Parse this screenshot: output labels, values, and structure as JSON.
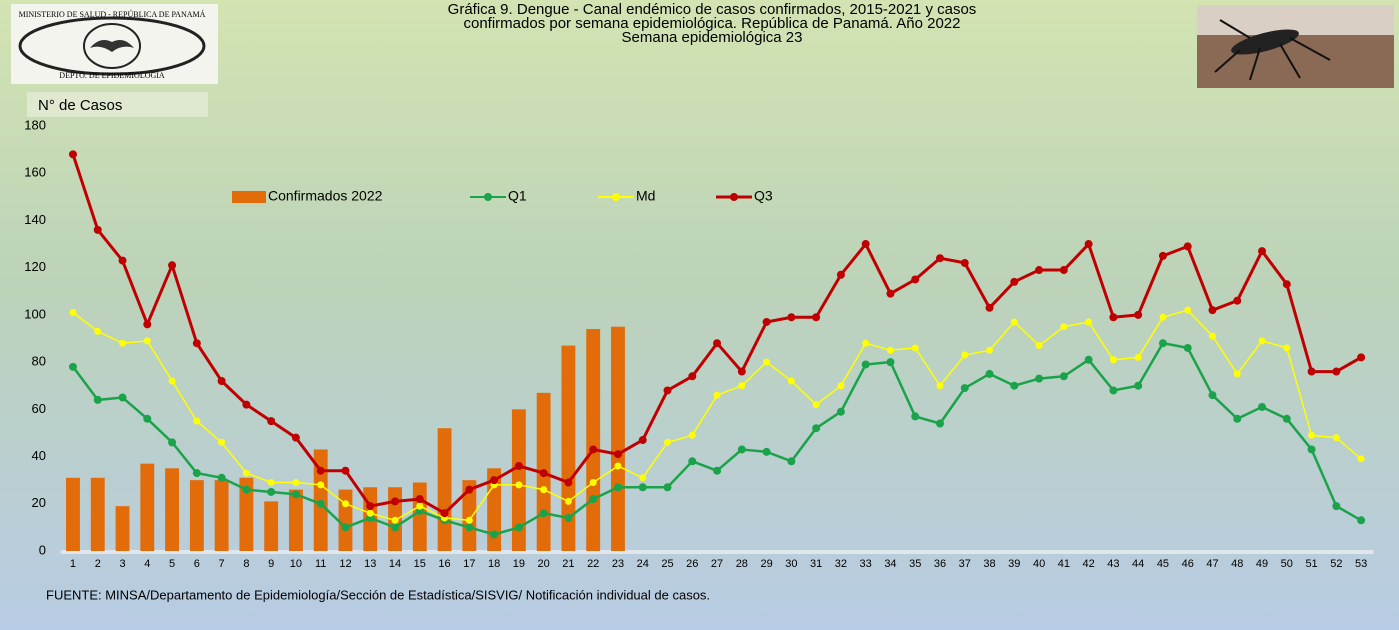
{
  "chart_data": {
    "type": "combo",
    "title": [
      "Gráfica 9. Dengue - Canal endémico de casos confirmados, 2015-2021 y casos",
      "confirmados por semana epidemiológica. República de Panamá. Año 2022",
      "Semana epidemiológica 23"
    ],
    "logo": {
      "top": "MINISTERIO DE SALUD - REPÚBLICA DE PANAMÁ",
      "bottom": "DEPTO. DE EPIDEMIOLOGÍA"
    },
    "y_label": "N° de Casos",
    "source": "FUENTE: MINSA/Departamento de Epidemiología/Sección de Estadística/SISVIG/ Notificación individual de casos.",
    "categories": [
      "1",
      "2",
      "3",
      "4",
      "5",
      "6",
      "7",
      "8",
      "9",
      "10",
      "11",
      "12",
      "13",
      "14",
      "15",
      "16",
      "17",
      "18",
      "19",
      "20",
      "21",
      "22",
      "23",
      "24",
      "25",
      "26",
      "27",
      "28",
      "29",
      "30",
      "31",
      "32",
      "33",
      "34",
      "35",
      "36",
      "37",
      "38",
      "39",
      "40",
      "41",
      "42",
      "43",
      "44",
      "45",
      "46",
      "47",
      "48",
      "49",
      "50",
      "51",
      "52",
      "53"
    ],
    "ylim": [
      0,
      180
    ],
    "yticks": [
      0,
      20,
      40,
      60,
      80,
      100,
      120,
      140,
      160,
      180
    ],
    "grid": false,
    "legend": "top-left",
    "series": [
      {
        "name": "Confirmados 2022",
        "type": "bar",
        "color": "#e36c0a",
        "values": [
          31,
          31,
          19,
          37,
          35,
          30,
          30,
          31,
          21,
          26,
          43,
          26,
          27,
          27,
          29,
          52,
          30,
          35,
          60,
          67,
          87,
          94,
          95,
          null,
          null,
          null,
          null,
          null,
          null,
          null,
          null,
          null,
          null,
          null,
          null,
          null,
          null,
          null,
          null,
          null,
          null,
          null,
          null,
          null,
          null,
          null,
          null,
          null,
          null,
          null,
          null,
          null,
          null
        ]
      },
      {
        "name": "Q1",
        "type": "line",
        "color": "#1aa34a",
        "values": [
          78,
          64,
          65,
          56,
          46,
          33,
          31,
          26,
          25,
          24,
          20,
          10,
          14,
          10,
          17,
          13,
          10,
          7,
          10,
          16,
          14,
          22,
          27,
          27,
          27,
          38,
          34,
          43,
          42,
          38,
          52,
          59,
          79,
          80,
          57,
          54,
          69,
          75,
          70,
          73,
          74,
          81,
          68,
          70,
          88,
          86,
          66,
          56,
          61,
          56,
          43,
          19,
          13
        ]
      },
      {
        "name": "Md",
        "type": "line",
        "color": "#ffff00",
        "values": [
          101,
          93,
          88,
          89,
          72,
          55,
          46,
          33,
          29,
          29,
          28,
          20,
          16,
          13,
          19,
          14,
          13,
          28,
          28,
          26,
          21,
          29,
          36,
          31,
          46,
          49,
          66,
          70,
          80,
          72,
          62,
          70,
          88,
          85,
          86,
          70,
          83,
          85,
          97,
          87,
          95,
          97,
          81,
          82,
          99,
          102,
          91,
          75,
          89,
          86,
          49,
          48,
          39
        ]
      },
      {
        "name": "Q3",
        "type": "line",
        "color": "#c00000",
        "values": [
          168,
          136,
          123,
          96,
          121,
          88,
          72,
          62,
          55,
          48,
          34,
          34,
          19,
          21,
          22,
          16,
          26,
          30,
          36,
          33,
          29,
          43,
          41,
          47,
          68,
          74,
          88,
          76,
          97,
          99,
          99,
          117,
          130,
          109,
          115,
          124,
          122,
          103,
          114,
          119,
          119,
          130,
          99,
          100,
          125,
          129,
          102,
          106,
          127,
          113,
          76,
          76,
          82
        ]
      }
    ]
  }
}
